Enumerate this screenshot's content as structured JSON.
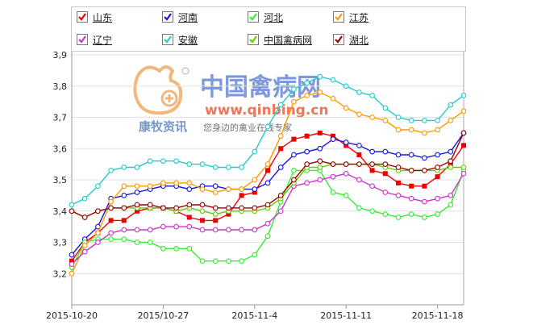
{
  "chart_data": {
    "type": "line",
    "categories": [
      "2015-10-20",
      "2015-10-21",
      "2015-10-22",
      "2015-10-23",
      "2015-10-24",
      "2015-10-25",
      "2015-10-26",
      "2015-10-27",
      "2015-10-28",
      "2015-10-29",
      "2015-10-30",
      "2015-10-31",
      "2015-11-01",
      "2015-11-02",
      "2015-11-03",
      "2015-11-04",
      "2015-11-05",
      "2015-11-06",
      "2015-11-07",
      "2015-11-08",
      "2015-11-09",
      "2015-11-10",
      "2015-11-11",
      "2015-11-12",
      "2015-11-13",
      "2015-11-14",
      "2015-11-15",
      "2015-11-16",
      "2015-11-17",
      "2015-11-18",
      "2015-11-19"
    ],
    "x_tick_labels": [
      "2015-10-20",
      "2015/10-27",
      "2015-11-4",
      "2015-11-11",
      "2015-11-18"
    ],
    "x_tick_index": [
      0,
      7,
      14,
      21,
      28
    ],
    "ylim": [
      3.1,
      3.9
    ],
    "y_ticks": [
      3.2,
      3.3,
      3.4,
      3.5,
      3.6,
      3.7,
      3.8,
      3.9
    ],
    "y_tick_labels": [
      "3,2",
      "3,3",
      "3,4",
      "3,5",
      "3,6",
      "3,7",
      "3,8",
      "3,9"
    ],
    "grid": "horizontal",
    "legend_position": "top",
    "series": [
      {
        "name": "山东",
        "color": "#ee0000",
        "marker": "square",
        "values": [
          3.24,
          3.3,
          3.33,
          3.37,
          3.37,
          3.4,
          3.41,
          3.41,
          3.4,
          3.38,
          3.37,
          3.37,
          3.39,
          3.45,
          3.46,
          3.53,
          3.6,
          3.63,
          3.64,
          3.65,
          3.64,
          3.61,
          3.58,
          3.53,
          3.52,
          3.49,
          3.48,
          3.48,
          3.51,
          3.55,
          3.61
        ]
      },
      {
        "name": "河南",
        "color": "#1515dd",
        "marker": "circle",
        "values": [
          3.26,
          3.31,
          3.35,
          3.44,
          3.45,
          3.46,
          3.47,
          3.48,
          3.48,
          3.47,
          3.48,
          3.48,
          3.47,
          3.47,
          3.47,
          3.49,
          3.54,
          3.58,
          3.59,
          3.6,
          3.63,
          3.62,
          3.61,
          3.59,
          3.59,
          3.58,
          3.58,
          3.57,
          3.58,
          3.59,
          3.65
        ]
      },
      {
        "name": "河北",
        "color": "#33ee33",
        "marker": "circle",
        "values": [
          3.22,
          3.3,
          3.31,
          3.31,
          3.31,
          3.3,
          3.3,
          3.28,
          3.28,
          3.28,
          3.24,
          3.24,
          3.24,
          3.24,
          3.26,
          3.32,
          3.43,
          3.53,
          3.53,
          3.53,
          3.46,
          3.45,
          3.41,
          3.4,
          3.39,
          3.38,
          3.39,
          3.38,
          3.39,
          3.42,
          3.53
        ]
      },
      {
        "name": "江苏",
        "color": "#ff9900",
        "marker": "circle",
        "values": [
          3.2,
          3.29,
          3.33,
          3.43,
          3.48,
          3.48,
          3.48,
          3.49,
          3.49,
          3.49,
          3.47,
          3.46,
          3.47,
          3.47,
          3.5,
          3.55,
          3.64,
          3.75,
          3.77,
          3.78,
          3.76,
          3.73,
          3.71,
          3.7,
          3.69,
          3.66,
          3.66,
          3.65,
          3.66,
          3.69,
          3.72
        ]
      },
      {
        "name": "辽宁",
        "color": "#cc33cc",
        "marker": "circle",
        "values": [
          3.23,
          3.27,
          3.3,
          3.33,
          3.34,
          3.34,
          3.34,
          3.35,
          3.35,
          3.35,
          3.34,
          3.34,
          3.34,
          3.34,
          3.34,
          3.36,
          3.4,
          3.48,
          3.49,
          3.5,
          3.51,
          3.52,
          3.5,
          3.48,
          3.46,
          3.45,
          3.44,
          3.43,
          3.44,
          3.45,
          3.52
        ]
      },
      {
        "name": "安徽",
        "color": "#22cccc",
        "marker": "circle",
        "values": [
          3.42,
          3.44,
          3.48,
          3.53,
          3.54,
          3.54,
          3.56,
          3.56,
          3.56,
          3.55,
          3.55,
          3.54,
          3.54,
          3.54,
          3.59,
          3.67,
          3.74,
          3.79,
          3.81,
          3.83,
          3.82,
          3.8,
          3.78,
          3.77,
          3.73,
          3.7,
          3.69,
          3.69,
          3.69,
          3.74,
          3.77
        ]
      },
      {
        "name": "中国禽病网",
        "color": "#66cc00",
        "marker": "circle",
        "values": [
          3.4,
          3.38,
          3.4,
          3.41,
          3.41,
          3.41,
          3.41,
          3.41,
          3.4,
          3.41,
          3.4,
          3.39,
          3.4,
          3.4,
          3.4,
          3.41,
          3.44,
          3.49,
          3.54,
          3.54,
          3.55,
          3.55,
          3.55,
          3.55,
          3.54,
          3.53,
          3.53,
          3.53,
          3.53,
          3.54,
          3.54
        ]
      },
      {
        "name": "湖北",
        "color": "#990000",
        "marker": "circle",
        "values": [
          3.4,
          3.38,
          3.4,
          3.41,
          3.41,
          3.42,
          3.42,
          3.41,
          3.41,
          3.42,
          3.42,
          3.41,
          3.41,
          3.41,
          3.41,
          3.42,
          3.45,
          3.5,
          3.55,
          3.56,
          3.55,
          3.55,
          3.55,
          3.55,
          3.55,
          3.54,
          3.53,
          3.53,
          3.54,
          3.56,
          3.65
        ]
      }
    ]
  },
  "watermark": {
    "site_name": "中国禽病网",
    "url": "www.qinbing.cn",
    "slogan": "您身边的禽业在线专家",
    "logo_text": "康牧资讯"
  }
}
